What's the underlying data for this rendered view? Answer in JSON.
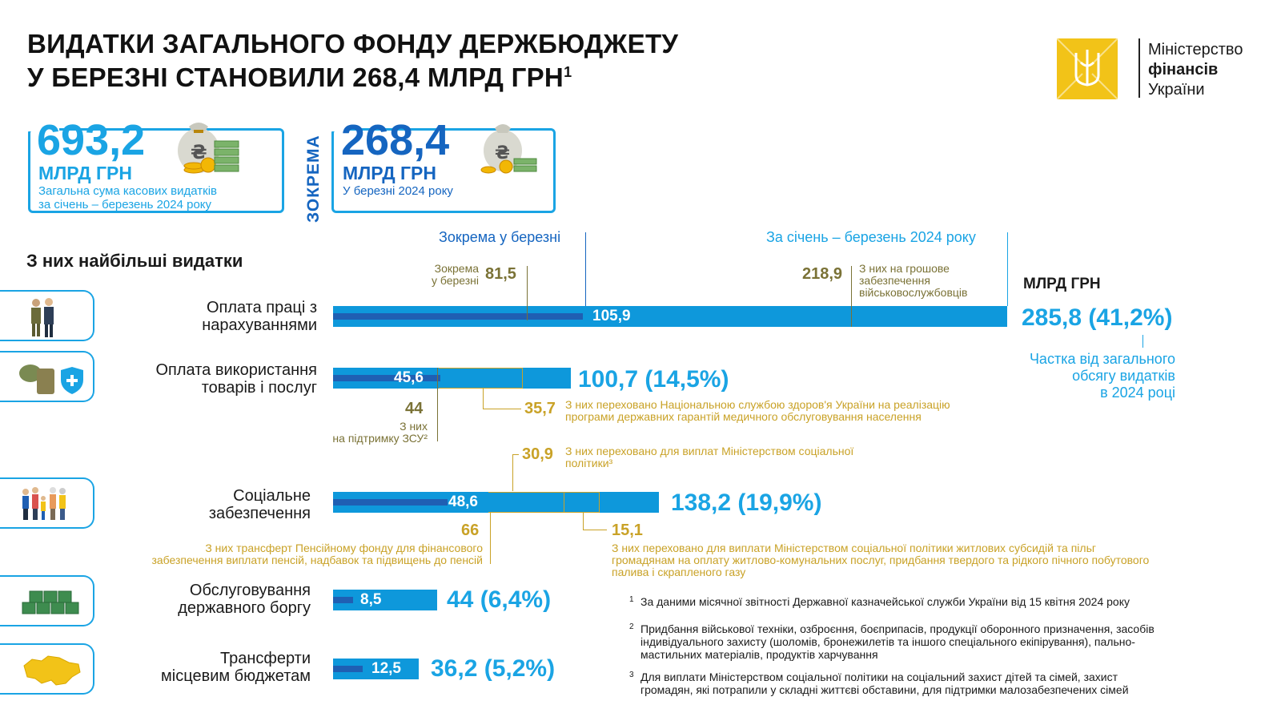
{
  "title": {
    "line1": "ВИДАТКИ ЗАГАЛЬНОГО ФОНДУ ДЕРЖБЮДЖЕТУ",
    "line2": "У БЕРЕЗНІ СТАНОВИЛИ 268,4 МЛРД ГРН",
    "sup": "1"
  },
  "logo": {
    "line1": "Міністерство",
    "line2": "фінансів",
    "line3": "України"
  },
  "cards": {
    "total": {
      "value": "693,2",
      "unit": "МЛРД ГРН",
      "caption1": "Загальна сума касових видатків",
      "caption2": "за січень – березень 2024 року"
    },
    "vertical": "ЗОКРЕМА",
    "march": {
      "value": "268,4",
      "unit": "МЛРД ГРН",
      "caption1": "У березні 2024 року"
    }
  },
  "headers": {
    "march": "Зокрема у березні",
    "total": "За січень – березень 2024 року",
    "section": "З них найбільші видатки",
    "unit": "МЛРД ГРН",
    "share1": "Частка від загального",
    "share2": "обсягу видатків",
    "share3": "в 2024 році"
  },
  "categories": [
    {
      "label1": "Оплата праці з",
      "label2": "нарахуваннями",
      "march_value": 105.9,
      "march_label": "105,9",
      "total_value": 285.8,
      "total_label": "285,8 (41,2%)",
      "icon": "soldiers-icon",
      "sub_march_label1": "Зокрема",
      "sub_march_label2": "у березні",
      "sub_march_value": "81,5",
      "sub_total_value": "218,9",
      "sub_total_label1": "З них на грошове",
      "sub_total_label2": "забезпечення",
      "sub_total_label3": "військовослужбовців"
    },
    {
      "label1": "Оплата використання",
      "label2": "товарів і послуг",
      "march_value": 45.6,
      "march_label": "45,6",
      "total_value": 100.7,
      "total_label": "100,7 (14,5%)",
      "icon": "helmet-shield-icon",
      "zsu_value": "44",
      "zsu_label1": "З них",
      "zsu_label2": "на підтримку ЗСУ²",
      "nszu_value": "35,7",
      "nszu_label1": "З них переховано Національною службою здоров'я України на реалізацію",
      "nszu_label2": "програми державних гарантій медичного обслуговування населення"
    },
    {
      "label1": "Соціальне",
      "label2": "забезпечення",
      "march_value": 48.6,
      "march_label": "48,6",
      "total_value": 138.2,
      "total_label": "138,2 (19,9%)",
      "icon": "family-icon",
      "msp_value": "30,9",
      "msp_label1": "З них переховано для виплат Міністерством соціальної",
      "msp_label2": "політики³",
      "pf_value": "66",
      "pf_label1": "З них трансферт Пенсійному фонду для фінансового",
      "pf_label2": "забезпечення виплати пенсій, надбавок та підвищень до пенсій",
      "sub_value": "15,1",
      "sub_label1": "З них переховано для виплати Міністерством соціальної політики  житлових субсидій та пільг",
      "sub_label2": "громадянам на оплату житлово-комунальних послуг, придбання твердого та рідкого пічного побутового",
      "sub_label3": "палива і скрапленого газу"
    },
    {
      "label1": "Обслуговування",
      "label2": "державного боргу",
      "march_value": 8.5,
      "march_label": "8,5",
      "total_value": 44,
      "total_label": "44 (6,4%)",
      "icon": "money-stacks-icon"
    },
    {
      "label1": "Трансферти",
      "label2": "місцевим бюджетам",
      "march_value": 12.5,
      "march_label": "12,5",
      "total_value": 36.2,
      "total_label": "36,2 (5,2%)",
      "icon": "ukraine-map-icon"
    }
  ],
  "footnotes": [
    {
      "mark": "1",
      "text1": "За даними місячної звітності Державної казначейської служби України від 15 квітня 2024 року"
    },
    {
      "mark": "2",
      "text1": "Придбання військової техніки, озброєння, боєприпасів, продукції оборонного призначення, засобів",
      "text2": "індивідуального захисту (шоломів, бронежилетів та іншого спеціального екіпірування), пально-",
      "text3": "мастильних матеріалів, продуктів харчування"
    },
    {
      "mark": "3",
      "text1": "Для виплати Міністерством соціальної політики на соціальний захист дітей та сімей, захист",
      "text2": "громадян, які потрапили у складні життєві обставини, для підтримки малозабезпечених сімей"
    }
  ],
  "colors": {
    "total_bar": "#0e98db",
    "march_bar": "#1f5fb3",
    "accent": "#1aa4e4",
    "olive": "#7a7236",
    "gold": "#c9a227",
    "logo_yellow": "#f2c318"
  }
}
